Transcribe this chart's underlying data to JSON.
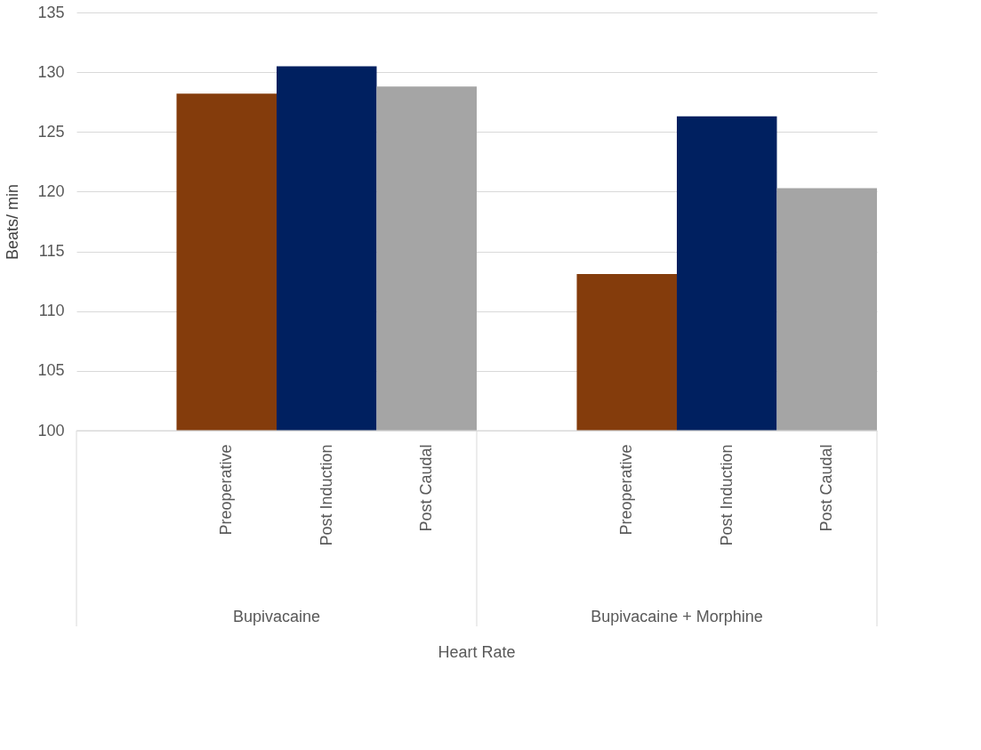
{
  "chart_data": {
    "type": "bar",
    "ylabel": "Beats/ min",
    "categories": [
      null,
      "Preoperative",
      "Post Induction",
      "Post Caudal",
      null,
      "Preoperative",
      "Post Induction",
      "Post Caudal"
    ],
    "values": [
      null,
      128.2,
      130.5,
      128.8,
      null,
      113.1,
      126.3,
      120.3
    ],
    "colors": [
      null,
      "#843c0c",
      "#002060",
      "#a5a5a5",
      null,
      "#843c0c",
      "#002060",
      "#a5a5a5"
    ],
    "annotations": [
      "Bupivacaine",
      "Bupivacaine + Morphine",
      "Heart Rate"
    ],
    "ylim": [
      100,
      135
    ],
    "yticks": [
      100,
      105,
      110,
      115,
      120,
      125,
      130,
      135
    ],
    "grid": "y"
  }
}
